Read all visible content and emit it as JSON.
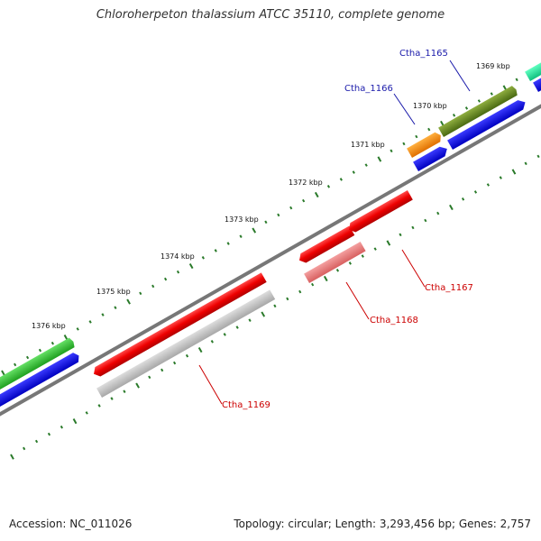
{
  "title": "Chloroherpeton thalassium ATCC 35110, complete genome",
  "footer": {
    "accession": "Accession: NC_011026",
    "summary": "Topology: circular; Length: 3,293,456 bp; Genes: 2,757"
  },
  "colors": {
    "backbone": "#777777",
    "forward_label": "#1a1aaa",
    "reverse_label": "#cc0000",
    "tick": "#2a7a2a"
  },
  "ticks": [
    {
      "label": "1369 kbp"
    },
    {
      "label": "1370 kbp"
    },
    {
      "label": "1371 kbp"
    },
    {
      "label": "1372 kbp"
    },
    {
      "label": "1373 kbp"
    },
    {
      "label": "1374 kbp"
    },
    {
      "label": "1375 kbp"
    },
    {
      "label": "1376 kbp"
    }
  ],
  "gene_labels": [
    {
      "name": "Ctha_1165",
      "strand": "forward"
    },
    {
      "name": "Ctha_1166",
      "strand": "forward"
    },
    {
      "name": "Ctha_1167",
      "strand": "reverse"
    },
    {
      "name": "Ctha_1168",
      "strand": "reverse"
    },
    {
      "name": "Ctha_1169",
      "strand": "reverse"
    }
  ]
}
